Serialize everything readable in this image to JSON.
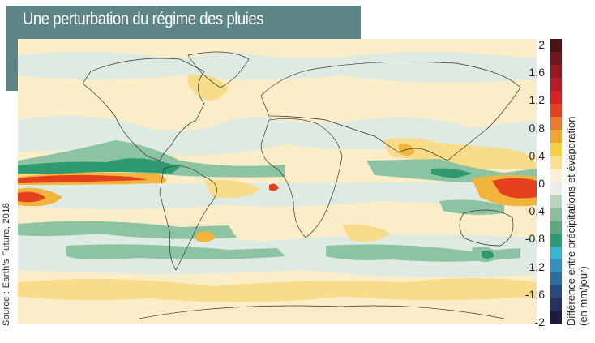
{
  "title": "Une perturbation du régime des pluies",
  "source": "Source : Earth's Future, 2018",
  "colorbar": {
    "label_line1": "Différence entre précipitations et évaporation",
    "label_line2": "(en mm/jour)",
    "ticks": [
      "2",
      "1,6",
      "1,2",
      "0,8",
      "0,4",
      "0",
      "-0,4",
      "-0,8",
      "-1,2",
      "-1,6",
      "-2"
    ],
    "range": [
      -2,
      2
    ],
    "colors": [
      "#4b1214",
      "#6e161b",
      "#901b22",
      "#b31e26",
      "#d32423",
      "#e4401f",
      "#e8792f",
      "#eeaa30",
      "#f6cf48",
      "#f8e18f",
      "#f6f0da",
      "#e9eee8",
      "#b9d4c0",
      "#8cbd9d",
      "#5fa87f",
      "#2f9a6f",
      "#3ab3d0",
      "#3690bb",
      "#2f6d9f",
      "#25497d",
      "#292f5f",
      "#1c1d3e"
    ]
  },
  "map_colors": {
    "background": "#fcedc9",
    "wet_light": "#deeae2",
    "wet_mid": "#8cc3a3",
    "wet_strong": "#2f9a6f",
    "dry_light": "#f8dc8a",
    "dry_mid": "#f2b43a",
    "dry_strong": "#e4401f"
  }
}
